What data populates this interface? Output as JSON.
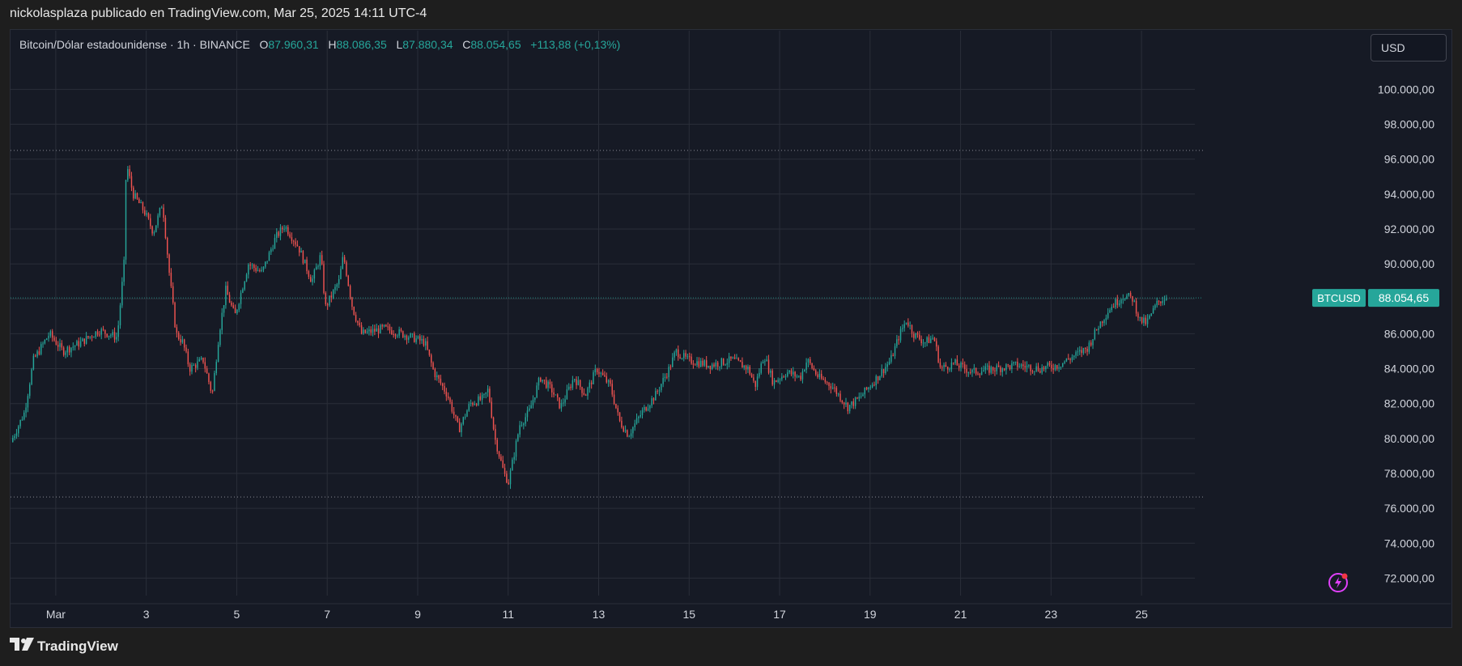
{
  "header": {
    "text": "nickolasplaza publicado en TradingView.com, Mar 25, 2025 14:11 UTC-4"
  },
  "legend": {
    "symbol": "Bitcoin/Dólar estadounidense · 1h · BINANCE",
    "open_label": "O",
    "open": "87.960,31",
    "high_label": "H",
    "high": "88.086,35",
    "low_label": "L",
    "low": "87.880,34",
    "close_label": "C",
    "close": "88.054,65",
    "change": "+113,88 (+0,13%)"
  },
  "currency_button": {
    "label": "USD"
  },
  "price_tag": {
    "symbol": "BTCUSD",
    "value": "88.054,65"
  },
  "footer": {
    "brand": "TradingView"
  },
  "colors": {
    "up": "#26a69a",
    "down": "#ef5350",
    "background": "#161a25",
    "grid": "#2a2e39"
  },
  "icons": {
    "logo": "tradingview-logo-icon",
    "bolt": "lightning-bolt-icon"
  },
  "chart_data": {
    "type": "candlestick",
    "y_range": [
      71000,
      101500
    ],
    "y_ticks": [
      "100.000,00",
      "98.000,00",
      "96.000,00",
      "94.000,00",
      "92.000,00",
      "90.000,00",
      "88.000,00",
      "86.000,00",
      "84.000,00",
      "82.000,00",
      "80.000,00",
      "78.000,00",
      "76.000,00",
      "74.000,00",
      "72.000,00"
    ],
    "y_tick_values": [
      100000,
      98000,
      96000,
      94000,
      92000,
      90000,
      88000,
      86000,
      84000,
      82000,
      80000,
      78000,
      76000,
      74000,
      72000
    ],
    "x_range_days": [
      0,
      26
    ],
    "x_ticks": [
      {
        "day": 1,
        "label": "Mar"
      },
      {
        "day": 3,
        "label": "3"
      },
      {
        "day": 5,
        "label": "5"
      },
      {
        "day": 7,
        "label": "7"
      },
      {
        "day": 9,
        "label": "9"
      },
      {
        "day": 11,
        "label": "11"
      },
      {
        "day": 13,
        "label": "13"
      },
      {
        "day": 15,
        "label": "15"
      },
      {
        "day": 17,
        "label": "17"
      },
      {
        "day": 19,
        "label": "19"
      },
      {
        "day": 21,
        "label": "21"
      },
      {
        "day": 23,
        "label": "23"
      },
      {
        "day": 25,
        "label": "25"
      }
    ],
    "reference_lines": [
      96500,
      76650,
      88054.65
    ],
    "last_price": 88054.65,
    "price_path": [
      {
        "d": 0.05,
        "p": 79800
      },
      {
        "d": 0.35,
        "p": 81500
      },
      {
        "d": 0.55,
        "p": 84500
      },
      {
        "d": 0.9,
        "p": 86000
      },
      {
        "d": 1.2,
        "p": 85000
      },
      {
        "d": 1.6,
        "p": 85500
      },
      {
        "d": 2.0,
        "p": 86200
      },
      {
        "d": 2.4,
        "p": 85800
      },
      {
        "d": 2.55,
        "p": 90000
      },
      {
        "d": 2.6,
        "p": 95800
      },
      {
        "d": 2.75,
        "p": 94000
      },
      {
        "d": 3.0,
        "p": 93000
      },
      {
        "d": 3.2,
        "p": 91800
      },
      {
        "d": 3.4,
        "p": 93500
      },
      {
        "d": 3.55,
        "p": 89500
      },
      {
        "d": 3.7,
        "p": 86000
      },
      {
        "d": 3.85,
        "p": 85500
      },
      {
        "d": 4.0,
        "p": 84000
      },
      {
        "d": 4.3,
        "p": 84500
      },
      {
        "d": 4.5,
        "p": 82500
      },
      {
        "d": 4.65,
        "p": 86000
      },
      {
        "d": 4.8,
        "p": 88500
      },
      {
        "d": 5.0,
        "p": 87000
      },
      {
        "d": 5.3,
        "p": 90000
      },
      {
        "d": 5.6,
        "p": 89500
      },
      {
        "d": 5.9,
        "p": 91500
      },
      {
        "d": 6.1,
        "p": 92200
      },
      {
        "d": 6.4,
        "p": 91000
      },
      {
        "d": 6.7,
        "p": 89000
      },
      {
        "d": 6.9,
        "p": 90500
      },
      {
        "d": 7.0,
        "p": 87500
      },
      {
        "d": 7.3,
        "p": 89000
      },
      {
        "d": 7.4,
        "p": 90500
      },
      {
        "d": 7.6,
        "p": 87500
      },
      {
        "d": 7.8,
        "p": 86000
      },
      {
        "d": 8.3,
        "p": 86300
      },
      {
        "d": 8.7,
        "p": 86000
      },
      {
        "d": 9.2,
        "p": 85500
      },
      {
        "d": 9.4,
        "p": 83800
      },
      {
        "d": 9.7,
        "p": 82500
      },
      {
        "d": 9.95,
        "p": 80500
      },
      {
        "d": 10.2,
        "p": 82000
      },
      {
        "d": 10.5,
        "p": 82300
      },
      {
        "d": 10.6,
        "p": 82800
      },
      {
        "d": 10.75,
        "p": 80000
      },
      {
        "d": 10.95,
        "p": 78000
      },
      {
        "d": 11.05,
        "p": 77500
      },
      {
        "d": 11.3,
        "p": 80800
      },
      {
        "d": 11.5,
        "p": 81500
      },
      {
        "d": 11.75,
        "p": 83500
      },
      {
        "d": 12.0,
        "p": 82800
      },
      {
        "d": 12.2,
        "p": 81800
      },
      {
        "d": 12.5,
        "p": 83500
      },
      {
        "d": 12.75,
        "p": 82500
      },
      {
        "d": 13.0,
        "p": 84000
      },
      {
        "d": 13.3,
        "p": 83000
      },
      {
        "d": 13.5,
        "p": 81000
      },
      {
        "d": 13.7,
        "p": 80200
      },
      {
        "d": 14.0,
        "p": 81500
      },
      {
        "d": 14.3,
        "p": 82500
      },
      {
        "d": 14.6,
        "p": 84000
      },
      {
        "d": 14.75,
        "p": 85000
      },
      {
        "d": 15.0,
        "p": 84500
      },
      {
        "d": 15.5,
        "p": 84200
      },
      {
        "d": 16.0,
        "p": 84500
      },
      {
        "d": 16.35,
        "p": 84000
      },
      {
        "d": 16.5,
        "p": 83000
      },
      {
        "d": 16.7,
        "p": 84800
      },
      {
        "d": 16.9,
        "p": 83200
      },
      {
        "d": 17.2,
        "p": 83800
      },
      {
        "d": 17.5,
        "p": 83500
      },
      {
        "d": 17.65,
        "p": 84500
      },
      {
        "d": 17.9,
        "p": 83500
      },
      {
        "d": 18.2,
        "p": 83000
      },
      {
        "d": 18.55,
        "p": 81800
      },
      {
        "d": 18.8,
        "p": 82300
      },
      {
        "d": 19.2,
        "p": 83500
      },
      {
        "d": 19.5,
        "p": 84500
      },
      {
        "d": 19.7,
        "p": 86000
      },
      {
        "d": 19.85,
        "p": 86800
      },
      {
        "d": 20.0,
        "p": 86000
      },
      {
        "d": 20.25,
        "p": 85500
      },
      {
        "d": 20.45,
        "p": 85800
      },
      {
        "d": 20.6,
        "p": 84000
      },
      {
        "d": 20.9,
        "p": 84300
      },
      {
        "d": 21.3,
        "p": 83800
      },
      {
        "d": 21.8,
        "p": 84000
      },
      {
        "d": 22.3,
        "p": 84200
      },
      {
        "d": 22.8,
        "p": 84000
      },
      {
        "d": 23.2,
        "p": 84200
      },
      {
        "d": 23.6,
        "p": 84800
      },
      {
        "d": 23.85,
        "p": 85200
      },
      {
        "d": 24.1,
        "p": 86500
      },
      {
        "d": 24.35,
        "p": 87500
      },
      {
        "d": 24.65,
        "p": 88200
      },
      {
        "d": 24.85,
        "p": 88000
      },
      {
        "d": 25.0,
        "p": 86800
      },
      {
        "d": 25.15,
        "p": 86600
      },
      {
        "d": 25.4,
        "p": 87800
      },
      {
        "d": 25.55,
        "p": 88054
      }
    ],
    "bars_per_day": 24
  }
}
